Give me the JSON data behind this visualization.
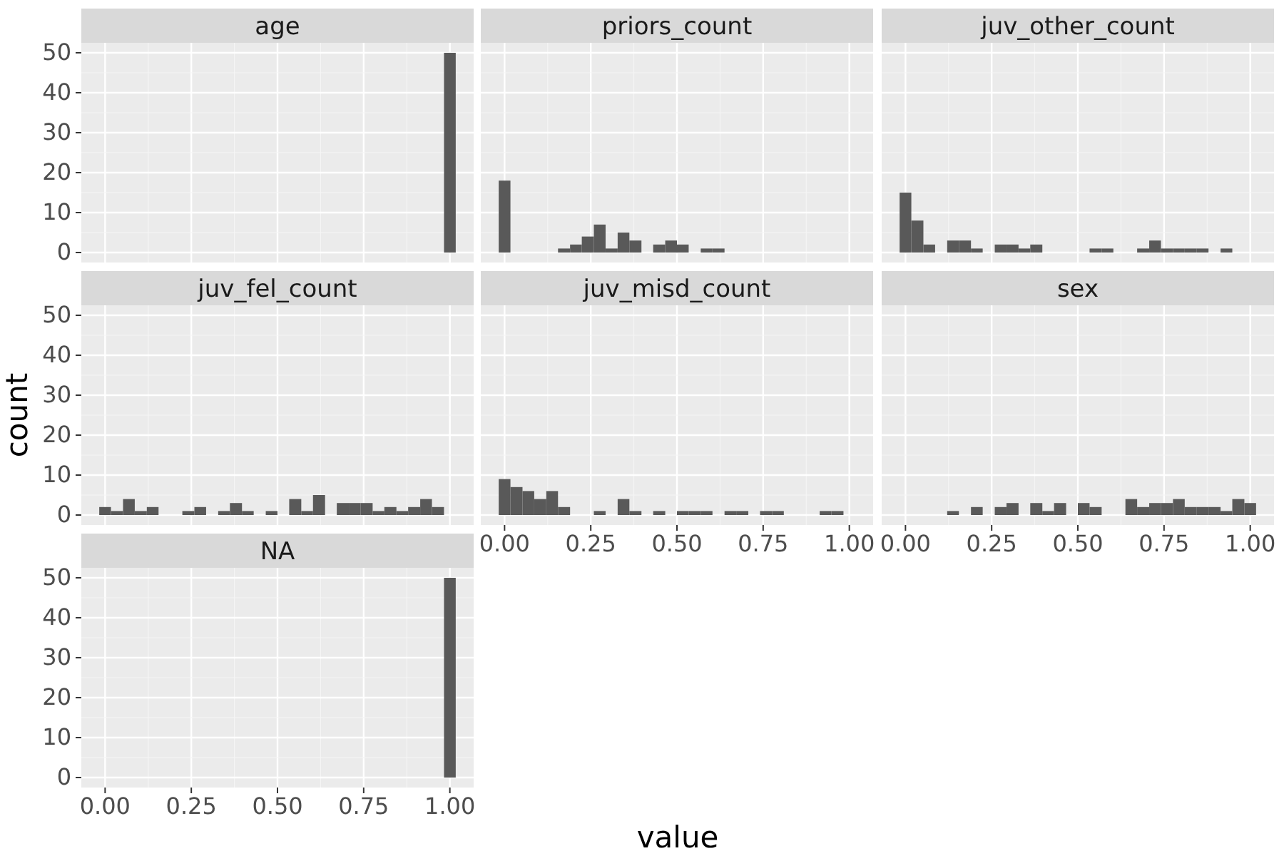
{
  "chart_data": [
    {
      "type": "histogram",
      "title": "age",
      "bins": [
        -0.017,
        0.017,
        0.052,
        0.086,
        0.121,
        0.155,
        0.19,
        0.224,
        0.259,
        0.293,
        0.328,
        0.362,
        0.397,
        0.431,
        0.466,
        0.5,
        0.534,
        0.569,
        0.603,
        0.638,
        0.672,
        0.707,
        0.741,
        0.776,
        0.81,
        0.845,
        0.879,
        0.914,
        0.948,
        0.983,
        1.017
      ],
      "values": [
        0,
        0,
        0,
        0,
        0,
        0,
        0,
        0,
        0,
        0,
        0,
        0,
        0,
        0,
        0,
        0,
        0,
        0,
        0,
        0,
        0,
        0,
        0,
        0,
        0,
        0,
        0,
        0,
        0,
        50
      ],
      "color": "#595959",
      "xlim": [
        -0.069,
        1.069
      ],
      "ylim": [
        -2.5,
        52.5
      ],
      "xticks": [
        0,
        0.25,
        0.5,
        0.75,
        1
      ],
      "yticks": [
        0,
        10,
        20,
        30,
        40,
        50
      ],
      "grid": true,
      "tick_labels": "y"
    },
    {
      "type": "histogram",
      "title": "priors_count",
      "bins": [
        -0.017,
        0.017,
        0.052,
        0.086,
        0.121,
        0.155,
        0.19,
        0.224,
        0.259,
        0.293,
        0.328,
        0.362,
        0.397,
        0.431,
        0.466,
        0.5,
        0.534,
        0.569,
        0.603,
        0.638,
        0.672,
        0.707,
        0.741,
        0.776,
        0.81,
        0.845,
        0.879,
        0.914,
        0.948,
        0.983,
        1.017
      ],
      "values": [
        18,
        0,
        0,
        0,
        0,
        1,
        2,
        4,
        7,
        1,
        5,
        3,
        0,
        2,
        3,
        2,
        0,
        1,
        1,
        0,
        0,
        0,
        0,
        0,
        0,
        0,
        0,
        0,
        0,
        0
      ],
      "color": "#595959",
      "xlim": [
        -0.069,
        1.069
      ],
      "ylim": [
        -2.5,
        52.5
      ],
      "xticks": [
        0,
        0.25,
        0.5,
        0.75,
        1
      ],
      "yticks": [
        0,
        10,
        20,
        30,
        40,
        50
      ],
      "grid": true,
      "tick_labels": false
    },
    {
      "type": "histogram",
      "title": "juv_other_count",
      "bins": [
        -0.017,
        0.017,
        0.052,
        0.086,
        0.121,
        0.155,
        0.19,
        0.224,
        0.259,
        0.293,
        0.328,
        0.362,
        0.397,
        0.431,
        0.466,
        0.5,
        0.534,
        0.569,
        0.603,
        0.638,
        0.672,
        0.707,
        0.741,
        0.776,
        0.81,
        0.845,
        0.879,
        0.914,
        0.948,
        0.983,
        1.017
      ],
      "values": [
        15,
        8,
        2,
        0,
        3,
        3,
        1,
        0,
        2,
        2,
        1,
        2,
        0,
        0,
        0,
        0,
        1,
        1,
        0,
        0,
        1,
        3,
        1,
        1,
        1,
        1,
        0,
        1,
        0,
        0
      ],
      "color": "#595959",
      "xlim": [
        -0.069,
        1.069
      ],
      "ylim": [
        -2.5,
        52.5
      ],
      "xticks": [
        0,
        0.25,
        0.5,
        0.75,
        1
      ],
      "yticks": [
        0,
        10,
        20,
        30,
        40,
        50
      ],
      "grid": true,
      "tick_labels": false
    },
    {
      "type": "histogram",
      "title": "juv_fel_count",
      "ylabel": "count",
      "bins": [
        -0.017,
        0.017,
        0.052,
        0.086,
        0.121,
        0.155,
        0.19,
        0.224,
        0.259,
        0.293,
        0.328,
        0.362,
        0.397,
        0.431,
        0.466,
        0.5,
        0.534,
        0.569,
        0.603,
        0.638,
        0.672,
        0.707,
        0.741,
        0.776,
        0.81,
        0.845,
        0.879,
        0.914,
        0.948,
        0.983,
        1.017
      ],
      "values": [
        2,
        1,
        4,
        1,
        2,
        0,
        0,
        1,
        2,
        0,
        1,
        3,
        1,
        0,
        1,
        0,
        4,
        1,
        5,
        0,
        3,
        3,
        3,
        1,
        2,
        1,
        2,
        4,
        2,
        0
      ],
      "color": "#595959",
      "xlim": [
        -0.069,
        1.069
      ],
      "ylim": [
        -2.5,
        52.5
      ],
      "xticks": [
        0,
        0.25,
        0.5,
        0.75,
        1
      ],
      "yticks": [
        0,
        10,
        20,
        30,
        40,
        50
      ],
      "grid": true,
      "tick_labels": "y"
    },
    {
      "type": "histogram",
      "title": "juv_misd_count",
      "bins": [
        -0.017,
        0.017,
        0.052,
        0.086,
        0.121,
        0.155,
        0.19,
        0.224,
        0.259,
        0.293,
        0.328,
        0.362,
        0.397,
        0.431,
        0.466,
        0.5,
        0.534,
        0.569,
        0.603,
        0.638,
        0.672,
        0.707,
        0.741,
        0.776,
        0.81,
        0.845,
        0.879,
        0.914,
        0.948,
        0.983,
        1.017
      ],
      "values": [
        9,
        7,
        6,
        4,
        6,
        2,
        0,
        0,
        1,
        0,
        4,
        1,
        0,
        1,
        0,
        1,
        1,
        1,
        0,
        1,
        1,
        0,
        1,
        1,
        0,
        0,
        0,
        1,
        1,
        0
      ],
      "color": "#595959",
      "xlim": [
        -0.069,
        1.069
      ],
      "ylim": [
        -2.5,
        52.5
      ],
      "xticks": [
        {
          "value": 0,
          "label": "0.00"
        },
        {
          "value": 0.25,
          "label": "0.25"
        },
        {
          "value": 0.5,
          "label": "0.50"
        },
        {
          "value": 0.75,
          "label": "0.75"
        },
        {
          "value": 1,
          "label": "1.00"
        }
      ],
      "yticks": [
        0,
        10,
        20,
        30,
        40,
        50
      ],
      "grid": true,
      "tick_labels": "x"
    },
    {
      "type": "histogram",
      "title": "sex",
      "bins": [
        -0.017,
        0.017,
        0.052,
        0.086,
        0.121,
        0.155,
        0.19,
        0.224,
        0.259,
        0.293,
        0.328,
        0.362,
        0.397,
        0.431,
        0.466,
        0.5,
        0.534,
        0.569,
        0.603,
        0.638,
        0.672,
        0.707,
        0.741,
        0.776,
        0.81,
        0.845,
        0.879,
        0.914,
        0.948,
        0.983,
        1.017
      ],
      "values": [
        0,
        0,
        0,
        0,
        1,
        0,
        2,
        0,
        2,
        3,
        0,
        3,
        1,
        3,
        0,
        3,
        2,
        0,
        0,
        4,
        2,
        3,
        3,
        4,
        2,
        2,
        2,
        1,
        4,
        3
      ],
      "color": "#595959",
      "xlim": [
        -0.069,
        1.069
      ],
      "ylim": [
        -2.5,
        52.5
      ],
      "xticks": [
        {
          "value": 0,
          "label": "0.00"
        },
        {
          "value": 0.25,
          "label": "0.25"
        },
        {
          "value": 0.5,
          "label": "0.50"
        },
        {
          "value": 0.75,
          "label": "0.75"
        },
        {
          "value": 1,
          "label": "1.00"
        }
      ],
      "yticks": [
        0,
        10,
        20,
        30,
        40,
        50
      ],
      "grid": true,
      "tick_labels": "x"
    },
    {
      "type": "histogram",
      "title": "NA",
      "xlabel": "value",
      "bins": [
        -0.017,
        0.017,
        0.052,
        0.086,
        0.121,
        0.155,
        0.19,
        0.224,
        0.259,
        0.293,
        0.328,
        0.362,
        0.397,
        0.431,
        0.466,
        0.5,
        0.534,
        0.569,
        0.603,
        0.638,
        0.672,
        0.707,
        0.741,
        0.776,
        0.81,
        0.845,
        0.879,
        0.914,
        0.948,
        0.983,
        1.017
      ],
      "values": [
        0,
        0,
        0,
        0,
        0,
        0,
        0,
        0,
        0,
        0,
        0,
        0,
        0,
        0,
        0,
        0,
        0,
        0,
        0,
        0,
        0,
        0,
        0,
        0,
        0,
        0,
        0,
        0,
        0,
        50
      ],
      "color": "#595959",
      "xlim": [
        -0.069,
        1.069
      ],
      "ylim": [
        -2.5,
        52.5
      ],
      "xticks": [
        {
          "value": 0,
          "label": "0.00"
        },
        {
          "value": 0.25,
          "label": "0.25"
        },
        {
          "value": 0.5,
          "label": "0.50"
        },
        {
          "value": 0.75,
          "label": "0.75"
        },
        {
          "value": 1,
          "label": "1.00"
        }
      ],
      "yticks": [
        0,
        10,
        20,
        30,
        40,
        50
      ],
      "grid": true
    }
  ]
}
